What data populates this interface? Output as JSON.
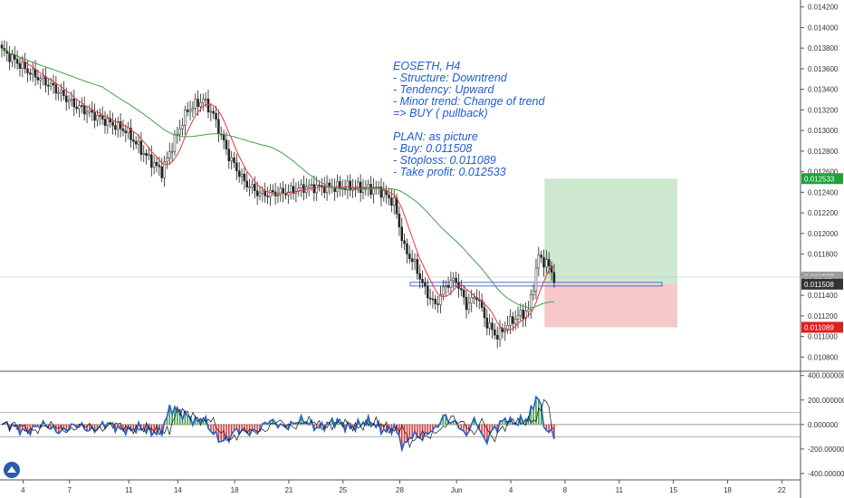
{
  "chart_data": [
    {
      "type": "candlestick",
      "price_axis": {
        "ticks": [
          "0.014200",
          "0.014000",
          "0.013800",
          "0.013600",
          "0.013400",
          "0.013200",
          "0.013000",
          "0.012800",
          "0.012600",
          "0.012400",
          "0.012200",
          "0.012000",
          "0.011800",
          "0.011600",
          "0.011400",
          "0.011200",
          "0.011000",
          "0.010800"
        ],
        "ylim": [
          0.01068,
          0.01425
        ],
        "grid": false
      },
      "time_axis": {
        "ticks": [
          "4",
          "7",
          "11",
          "14",
          "18",
          "21",
          "25",
          "28",
          "Jun",
          "4",
          "8",
          "11",
          "15",
          "18",
          "22"
        ]
      },
      "badges": [
        {
          "label": "0.012533",
          "value": 0.012533,
          "color": "#1aa33a"
        },
        {
          "label": "0.011577",
          "value": 0.011577,
          "color": "#9e9e9e"
        },
        {
          "label": "01:50:35",
          "value": 0.01154,
          "color": "#9e9e9e"
        },
        {
          "label": "0.011508",
          "value": 0.011508,
          "color": "#333333"
        },
        {
          "label": "0.011089",
          "value": 0.011089,
          "color": "#e02020"
        }
      ],
      "anchors": [
        [
          0,
          0.01378
        ],
        [
          10,
          0.01358
        ],
        [
          20,
          0.01342
        ],
        [
          28,
          0.01325
        ],
        [
          38,
          0.01312
        ],
        [
          48,
          0.013
        ],
        [
          56,
          0.01275
        ],
        [
          62,
          0.0126
        ],
        [
          66,
          0.01285
        ],
        [
          72,
          0.0132
        ],
        [
          78,
          0.0133
        ],
        [
          82,
          0.01315
        ],
        [
          88,
          0.01275
        ],
        [
          94,
          0.0125
        ],
        [
          100,
          0.01238
        ],
        [
          110,
          0.0124
        ],
        [
          118,
          0.01245
        ],
        [
          128,
          0.01245
        ],
        [
          136,
          0.01245
        ],
        [
          146,
          0.01243
        ],
        [
          152,
          0.0123
        ],
        [
          156,
          0.01185
        ],
        [
          160,
          0.0117
        ],
        [
          164,
          0.01145
        ],
        [
          168,
          0.0113
        ],
        [
          172,
          0.0115
        ],
        [
          176,
          0.01155
        ],
        [
          180,
          0.0113
        ],
        [
          184,
          0.0114
        ],
        [
          188,
          0.01112
        ],
        [
          192,
          0.011
        ],
        [
          196,
          0.01112
        ],
        [
          200,
          0.0112
        ],
        [
          204,
          0.01125
        ],
        [
          206,
          0.0115
        ],
        [
          208,
          0.01178
        ],
        [
          212,
          0.01168
        ],
        [
          214,
          0.01157
        ]
      ],
      "moving_averages": [
        {
          "color": "#e53935",
          "period": 8
        },
        {
          "color": "#43a047",
          "period": 40
        }
      ],
      "position": {
        "entry": 0.011508,
        "stop": 0.011089,
        "target": 0.012533,
        "profit_color": "#a5d6a7",
        "loss_color": "#ef9a9a"
      },
      "indicator": {
        "ticks": [
          "400.000000",
          "200.000000",
          "0.000000",
          "-200.000000",
          "-400.000000"
        ],
        "ylim": [
          -430,
          420
        ],
        "levels": [
          100,
          0,
          -100
        ]
      }
    }
  ],
  "annotation": {
    "text": "EOSETH, H4\n- Structure: Downtrend\n- Tendency: Upward\n- Minor trend: Change of trend\n=> BUY ( pullback)\n\nPLAN: as picture\n- Buy: 0.011508\n- Stoploss: 0.011089\n- Take profit: 0.012533"
  }
}
